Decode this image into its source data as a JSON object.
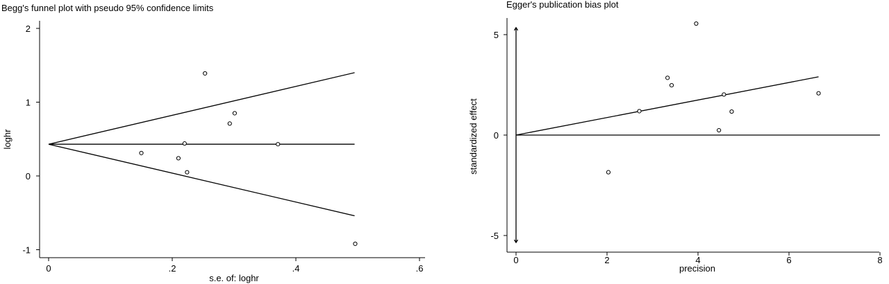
{
  "chart_data": [
    {
      "type": "scatter",
      "title": "Begg's funnel plot with pseudo 95% confidence limits",
      "xlabel": "s.e. of: loghr",
      "ylabel": "loghr",
      "xlim": [
        0,
        0.6
      ],
      "ylim": [
        -1,
        2
      ],
      "xticks": [
        0,
        0.2,
        0.4,
        0.6
      ],
      "xtick_labels": [
        "0",
        ".2",
        ".4",
        ".6"
      ],
      "yticks": [
        -1,
        0,
        1,
        2
      ],
      "ytick_labels": [
        "-1",
        "0",
        "1",
        "2"
      ],
      "grid": false,
      "points": [
        {
          "x": 0.15,
          "y": 0.31
        },
        {
          "x": 0.21,
          "y": 0.24
        },
        {
          "x": 0.22,
          "y": 0.44
        },
        {
          "x": 0.224,
          "y": 0.05
        },
        {
          "x": 0.253,
          "y": 1.39
        },
        {
          "x": 0.293,
          "y": 0.71
        },
        {
          "x": 0.301,
          "y": 0.85
        },
        {
          "x": 0.371,
          "y": 0.43
        },
        {
          "x": 0.496,
          "y": -0.92
        }
      ],
      "lines": [
        {
          "name": "pooled estimate",
          "x": [
            0,
            0.495
          ],
          "y": [
            0.43,
            0.43
          ]
        },
        {
          "name": "upper limit",
          "x": [
            0,
            0.495
          ],
          "y": [
            0.43,
            1.4
          ]
        },
        {
          "name": "lower limit",
          "x": [
            0,
            0.495
          ],
          "y": [
            0.43,
            -0.54
          ]
        }
      ]
    },
    {
      "type": "scatter",
      "title": "Egger's publication bias plot",
      "xlabel": "precision",
      "ylabel": "standardized effect",
      "xlim": [
        0,
        8
      ],
      "ylim": [
        -5.5,
        5.5
      ],
      "xticks": [
        0,
        2,
        4,
        6,
        8
      ],
      "xtick_labels": [
        "0",
        "2",
        "4",
        "6",
        "8"
      ],
      "yticks": [
        -5,
        0,
        5
      ],
      "ytick_labels": [
        "-5",
        "0",
        "5"
      ],
      "grid": false,
      "points": [
        {
          "x": 2.03,
          "y": -1.85
        },
        {
          "x": 2.71,
          "y": 1.19
        },
        {
          "x": 3.33,
          "y": 2.85
        },
        {
          "x": 3.42,
          "y": 2.48
        },
        {
          "x": 3.96,
          "y": 5.55
        },
        {
          "x": 4.46,
          "y": 0.24
        },
        {
          "x": 4.57,
          "y": 2.02
        },
        {
          "x": 4.74,
          "y": 1.17
        },
        {
          "x": 6.65,
          "y": 2.08
        }
      ],
      "lines": [
        {
          "name": "regression line",
          "x": [
            0,
            6.65
          ],
          "y": [
            0,
            2.9
          ]
        },
        {
          "name": "zero line",
          "x": [
            0,
            8
          ],
          "y": [
            0,
            0
          ]
        }
      ],
      "intercept_ci": [
        -5.35,
        5.35
      ]
    }
  ]
}
